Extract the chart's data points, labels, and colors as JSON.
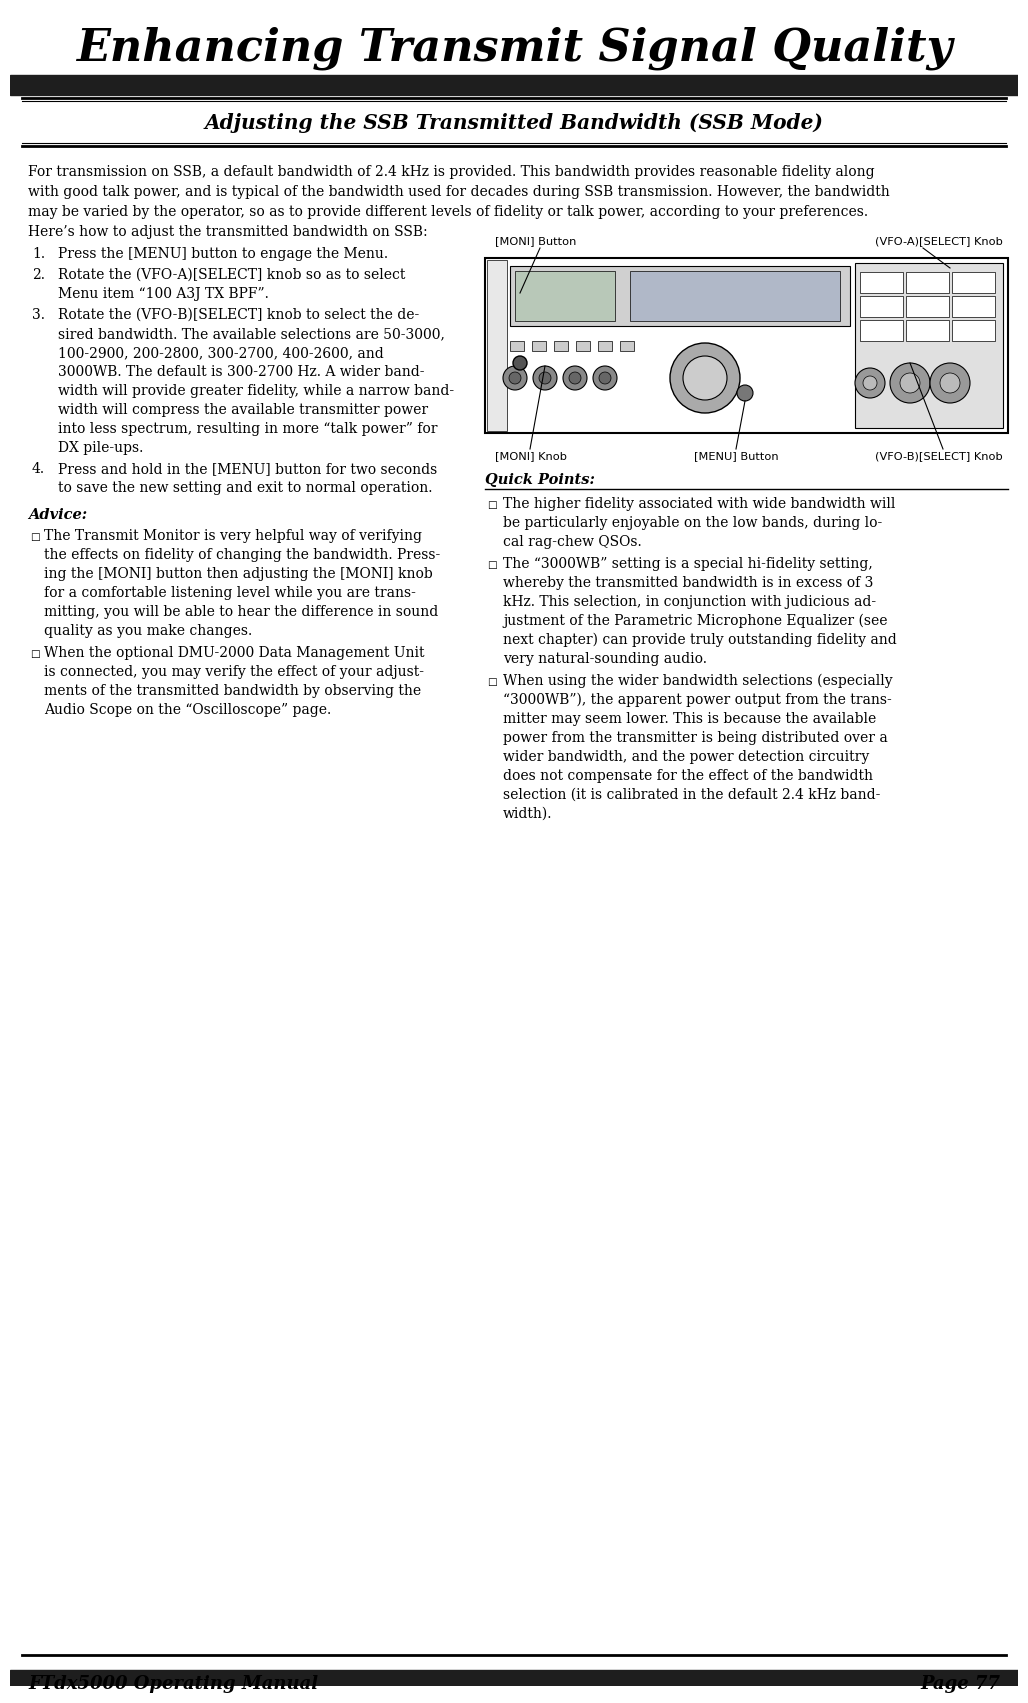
{
  "page_title": "Enhancing Transmit Signal Quality",
  "section_title_parts": [
    {
      "text": "Adjusting the ",
      "bold": false
    },
    {
      "text": "SSB Transmitted Bandwidth",
      "bold": true
    },
    {
      "text": " (",
      "bold": false
    },
    {
      "text": "SSB Mode",
      "bold": false,
      "small": true
    },
    {
      "text": ")",
      "bold": false
    }
  ],
  "section_title_str": "Adjusting the SSB Transmitted Bandwidth (SSB Mode)",
  "intro_text": "For transmission on SSB, a default bandwidth of 2.4 kHz is provided. This bandwidth provides reasonable fidelity along with good talk power, and is typical of the bandwidth used for decades during SSB transmission. However, the bandwidth may be varied by the operator, so as to provide different levels of fidelity or talk power, according to your preferences.",
  "here_heading": "Here’s how to adjust the transmitted bandwidth on SSB:",
  "step_nums": [
    "1.",
    "2.",
    "3.",
    "4."
  ],
  "step_lines": [
    [
      "Press the [MENU] button to engage the Menu."
    ],
    [
      "Rotate the (VFO-A)[SELECT] knob so as to select",
      "Menu item “100 A3J TX BPF”."
    ],
    [
      "Rotate the (VFO-B)[SELECT] knob to select the de-",
      "sired bandwidth. The available selections are 50-3000,",
      "100-2900, 200-2800, 300-2700, 400-2600, and",
      "3000WB. The default is 300-2700 Hz. A wider band-",
      "width will provide greater fidelity, while a narrow band-",
      "width will compress the available transmitter power",
      "into less spectrum, resulting in more “talk power” for",
      "DX pile-ups."
    ],
    [
      "Press and hold in the [MENU] button for two seconds",
      "to save the new setting and exit to normal operation."
    ]
  ],
  "advice_heading": "Advice:",
  "advice_bullets": [
    [
      "The Transmit Monitor is very helpful way of verifying",
      "the effects on fidelity of changing the bandwidth. Press-",
      "ing the [MONI] button then adjusting the [MONI] knob",
      "for a comfortable listening level while you are trans-",
      "mitting, you will be able to hear the difference in sound",
      "quality as you make changes."
    ],
    [
      "When the optional DMU-2000 Data Management Unit",
      "is connected, you may verify the effect of your adjust-",
      "ments of the transmitted bandwidth by observing the",
      "Audio Scope on the “Oscilloscope” page."
    ]
  ],
  "quick_heading": "Quick Points:",
  "quick_bullets": [
    [
      "The higher fidelity associated with wide bandwidth will",
      "be particularly enjoyable on the low bands, during lo-",
      "cal rag-chew QSOs."
    ],
    [
      "The “3000WB” setting is a special hi-fidelity setting,",
      "whereby the transmitted bandwidth is in excess of 3",
      "kHz. This selection, in conjunction with judicious ad-",
      "justment of the Parametric Microphone Equalizer (see",
      "next chapter) can provide truly outstanding fidelity and",
      "very natural-sounding audio."
    ],
    [
      "When using the wider bandwidth selections (especially",
      "“3000WB”), the apparent power output from the trans-",
      "mitter may seem lower. This is because the available",
      "power from the transmitter is being distributed over a",
      "wider bandwidth, and the power detection circuitry",
      "does not compensate for the effect of the bandwidth",
      "selection (it is calibrated in the default 2.4 kHz band-",
      "width)."
    ]
  ],
  "footer_left": "FTdx5000 Operating Manual",
  "footer_right": "Page 77",
  "label_moni_btn": "[MONI] Button",
  "label_vfoa": "(VFO-A)[SELECT] Knob",
  "label_moni_knob": "[MONI] Knob",
  "label_menu_btn": "[MENU] Button",
  "label_vfob": "(VFO-B)[SELECT] Knob",
  "bg_color": "#ffffff",
  "dark_bar": "#1e1e1e",
  "body_text_color": "#000000"
}
